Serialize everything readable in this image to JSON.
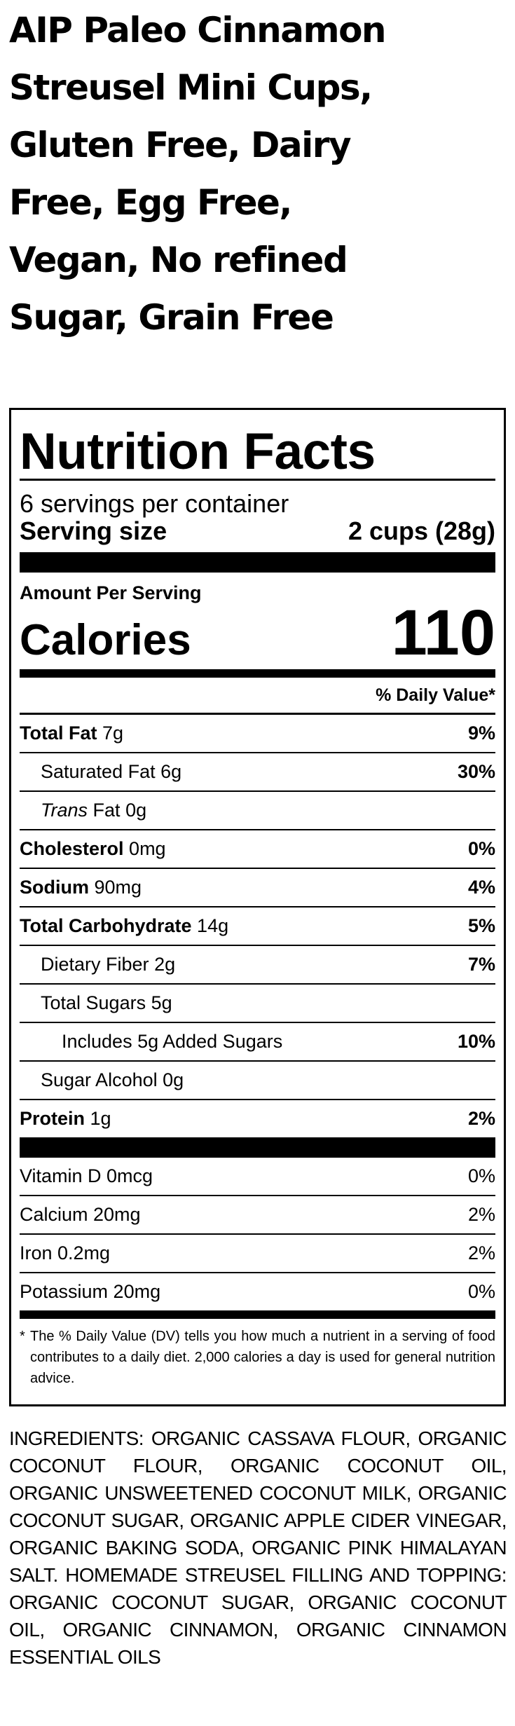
{
  "product_title": "AIP Paleo Cinnamon Streusel Mini Cups, Gluten Free, Dairy Free, Egg Free, Vegan, No refined Sugar, Grain Free",
  "nutrition": {
    "heading": "Nutrition Facts",
    "servings_per_container": "6 servings per container",
    "serving_size_label": "Serving size",
    "serving_size_value": "2 cups (28g)",
    "amount_per_serving": "Amount Per Serving",
    "calories_label": "Calories",
    "calories_value": "110",
    "daily_value_header": "% Daily Value*",
    "nutrients": [
      {
        "name": "Total Fat",
        "amount": "7g",
        "dv": "9%"
      },
      {
        "name": "Saturated Fat",
        "amount": "6g",
        "dv": "30%"
      },
      {
        "name": "Trans",
        "suffix": "Fat",
        "amount": "0g",
        "dv": ""
      },
      {
        "name": "Cholesterol",
        "amount": "0mg",
        "dv": "0%"
      },
      {
        "name": "Sodium",
        "amount": "90mg",
        "dv": "4%"
      },
      {
        "name": "Total Carbohydrate",
        "amount": "14g",
        "dv": "5%"
      },
      {
        "name": "Dietary Fiber",
        "amount": "2g",
        "dv": "7%"
      },
      {
        "name": "Total Sugars",
        "amount": "5g",
        "dv": ""
      },
      {
        "name": "Includes 5g Added Sugars",
        "amount": "",
        "dv": "10%"
      },
      {
        "name": "Sugar Alcohol",
        "amount": "0g",
        "dv": ""
      },
      {
        "name": "Protein",
        "amount": "1g",
        "dv": "2%"
      }
    ],
    "vitamins": [
      {
        "text": "Vitamin D 0mcg",
        "dv": "0%"
      },
      {
        "text": "Calcium 20mg",
        "dv": "2%"
      },
      {
        "text": "Iron 0.2mg",
        "dv": "2%"
      },
      {
        "text": "Potassium 20mg",
        "dv": "0%"
      }
    ],
    "footnote_mark": "*",
    "footnote": "The % Daily Value (DV) tells you how much a nutrient in a serving of food contributes to a daily diet. 2,000 calories a day is used for general nutrition advice."
  },
  "ingredients": "INGREDIENTS: ORGANIC CASSAVA FLOUR, ORGANIC COCONUT FLOUR, ORGANIC COCONUT OIL, ORGANIC UNSWEETENED COCONUT MILK, ORGANIC COCONUT SUGAR, ORGANIC APPLE CIDER VINEGAR, ORGANIC BAKING SODA, ORGANIC PINK HIMALAYAN SALT. HOMEMADE STREUSEL FILLING AND TOPPING: ORGANIC COCONUT SUGAR, ORGANIC COCONUT OIL, ORGANIC CINNAMON, ORGANIC CINNAMON ESSENTIAL OILS"
}
